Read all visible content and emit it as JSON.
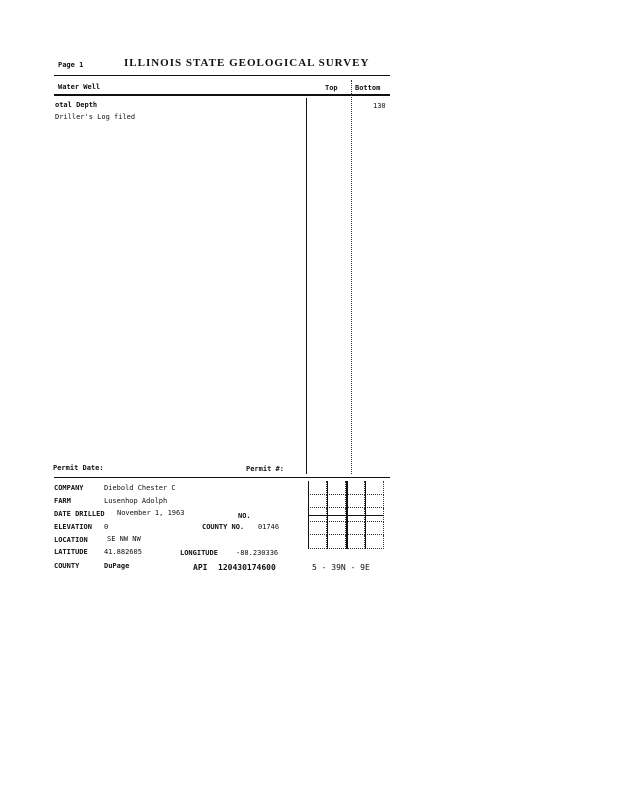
{
  "header": {
    "page_label": "Page 1",
    "title": "ILLINOIS STATE GEOLOGICAL SURVEY"
  },
  "columns": {
    "type": "Water Well",
    "top": "Top",
    "bottom": "Bottom"
  },
  "rows": [
    {
      "label": "otal Depth",
      "bottom": "130"
    },
    {
      "label": "Driller's Log filed",
      "bottom": ""
    }
  ],
  "permit": {
    "date_label": "Permit Date:",
    "number_label": "Permit #:"
  },
  "info": {
    "company_label": "COMPANY",
    "company": "Diebold Chester C",
    "farm_label": "FARM",
    "farm": "Lusenhop Adolph",
    "date_label": "DATE DRILLED",
    "date": "November 1, 1963",
    "no_label": "NO.",
    "elevation_label": "ELEVATION",
    "elevation": "0",
    "county_no_label": "COUNTY NO.",
    "county_no": "01746",
    "location_label": "LOCATION",
    "location": "SE NW NW",
    "latitude_label": "LATITUDE",
    "latitude": "41.882605",
    "longitude_label": "LONGITUDE",
    "longitude": "-88.230336",
    "county_label": "COUNTY",
    "county": "DuPage",
    "api_label": "API",
    "api": "120430174600",
    "township": "5 - 39N - 9E"
  }
}
